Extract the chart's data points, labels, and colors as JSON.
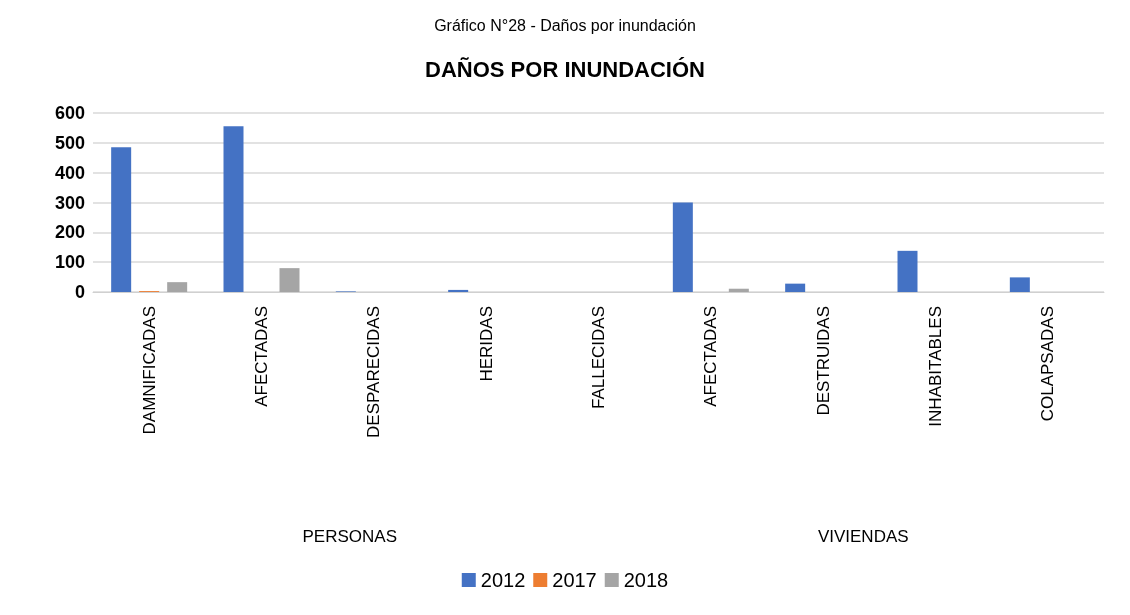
{
  "chart_data": {
    "type": "bar",
    "subtitle": "Gráfico N°28 - Daños por inundación",
    "title": "DAÑOS POR INUNDACIÓN",
    "categories": [
      "DAMNIFICADAS",
      "AFECTADAS",
      "DESPARECIDAS",
      "HERIDAS",
      "FALLECIDAS",
      "AFECTADAS",
      "DESTRUIDAS",
      "INHABITABLES",
      "COLAPSADAS"
    ],
    "series": [
      {
        "name": "2012",
        "color": "#4472c4",
        "values": [
          485,
          556,
          2,
          7,
          0,
          300,
          28,
          138,
          49
        ]
      },
      {
        "name": "2017",
        "color": "#ed7d31",
        "values": [
          3,
          0,
          0,
          0,
          0,
          0,
          0,
          0,
          null
        ]
      },
      {
        "name": "2018",
        "color": "#a5a5a5",
        "values": [
          33,
          80,
          0,
          0,
          0,
          11,
          0,
          null,
          null
        ]
      }
    ],
    "annotations": [
      "PERSONAS",
      "VIVIENDAS"
    ],
    "ylim": [
      0,
      600
    ],
    "yticks": [
      0,
      100,
      200,
      300,
      400,
      500,
      600
    ],
    "grid": "y",
    "legend": "bottom"
  }
}
